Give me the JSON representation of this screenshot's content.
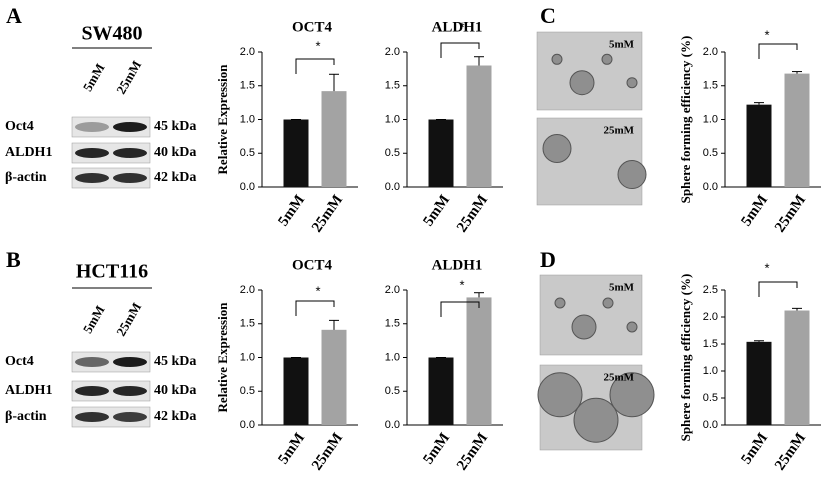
{
  "panels": [
    {
      "letter": "A",
      "cell_line": "SW480",
      "lanes": [
        "5mM",
        "25mM"
      ],
      "proteins": [
        "Oct4",
        "ALDH1",
        "β-actin"
      ],
      "sizes": [
        "45 kDa",
        "40 kDa",
        "42 kDa"
      ]
    },
    {
      "letter": "B",
      "cell_line": "HCT116",
      "lanes": [
        "5mM",
        "25mM"
      ],
      "proteins": [
        "Oct4",
        "ALDH1",
        "β-actin"
      ],
      "sizes": [
        "45 kDa",
        "40 kDa",
        "42 kDa"
      ]
    },
    {
      "letter": "C",
      "images": [
        "5mM",
        "25mM"
      ]
    },
    {
      "letter": "D",
      "images": [
        "5mM",
        "25mM"
      ]
    }
  ],
  "chart_data": [
    {
      "type": "bar",
      "title": "OCT4",
      "y_label": "Relative Expression",
      "categories": [
        "5mM",
        "25mM"
      ],
      "values": [
        1.0,
        1.42
      ],
      "errors": [
        0,
        0.25
      ],
      "colors": [
        "#111111",
        "#a3a3a3"
      ],
      "significance": "*",
      "ylim": [
        0,
        2.0
      ],
      "yticks": [
        {
          "value": 0,
          "label": "0.0"
        },
        0.5,
        {
          "value": 1,
          "label": "1.0"
        },
        1.5,
        {
          "value": 2,
          "label": "2.0"
        }
      ]
    },
    {
      "type": "bar",
      "title": "ALDH1",
      "y_label": null,
      "categories": [
        "5mM",
        "25mM"
      ],
      "values": [
        1.0,
        1.8
      ],
      "errors": [
        0,
        0.13
      ],
      "colors": [
        "#111111",
        "#a3a3a3"
      ],
      "significance": "*",
      "ylim": [
        0,
        2.0
      ],
      "yticks": [
        {
          "value": 0,
          "label": "0.0"
        },
        0.5,
        {
          "value": 1,
          "label": "1.0"
        },
        1.5,
        {
          "value": 2,
          "label": "2.0"
        }
      ]
    },
    {
      "type": "bar",
      "title": null,
      "y_label": "Sphere forming efficiency (%)",
      "categories": [
        "5mM",
        "25mM"
      ],
      "values": [
        1.22,
        1.68
      ],
      "errors": [
        0.03,
        0.03
      ],
      "colors": [
        "#111111",
        "#a3a3a3"
      ],
      "significance": "*",
      "ylim": [
        0,
        2.0
      ],
      "yticks": [
        {
          "value": 0,
          "label": "0.0"
        },
        0.5,
        {
          "value": 1,
          "label": "1.0"
        },
        1.5,
        {
          "value": 2,
          "label": "2.0"
        }
      ]
    },
    {
      "type": "bar",
      "title": "OCT4",
      "y_label": "Relative Expression",
      "categories": [
        "5mM",
        "25mM"
      ],
      "values": [
        1.0,
        1.41
      ],
      "errors": [
        0,
        0.14
      ],
      "colors": [
        "#111111",
        "#a3a3a3"
      ],
      "significance": "*",
      "ylim": [
        0,
        2.0
      ],
      "yticks": [
        {
          "value": 0,
          "label": "0.0"
        },
        0.5,
        {
          "value": 1,
          "label": "1.0"
        },
        1.5,
        {
          "value": 2,
          "label": "2.0"
        }
      ]
    },
    {
      "type": "bar",
      "title": "ALDH1",
      "y_label": null,
      "categories": [
        "5mM",
        "25mM"
      ],
      "values": [
        1.0,
        1.89
      ],
      "errors": [
        0,
        0.07
      ],
      "colors": [
        "#111111",
        "#a3a3a3"
      ],
      "significance": "*",
      "ylim": [
        0,
        2.0
      ],
      "yticks": [
        {
          "value": 0,
          "label": "0.0"
        },
        0.5,
        {
          "value": 1,
          "label": "1.0"
        },
        1.5,
        {
          "value": 2,
          "label": "2.0"
        }
      ]
    },
    {
      "type": "bar",
      "title": null,
      "y_label": "Sphere forming efficiency (%)",
      "categories": [
        "5mM",
        "25mM"
      ],
      "values": [
        1.54,
        2.12
      ],
      "errors": [
        0.02,
        0.04
      ],
      "colors": [
        "#111111",
        "#a3a3a3"
      ],
      "significance": "*",
      "ylim": [
        0,
        2.5
      ],
      "yticks": [
        {
          "value": 0,
          "label": "0.0"
        },
        0.5,
        {
          "value": 1,
          "label": "1.0"
        },
        1.5,
        {
          "value": 2,
          "label": "2.0"
        },
        2.5
      ]
    }
  ]
}
